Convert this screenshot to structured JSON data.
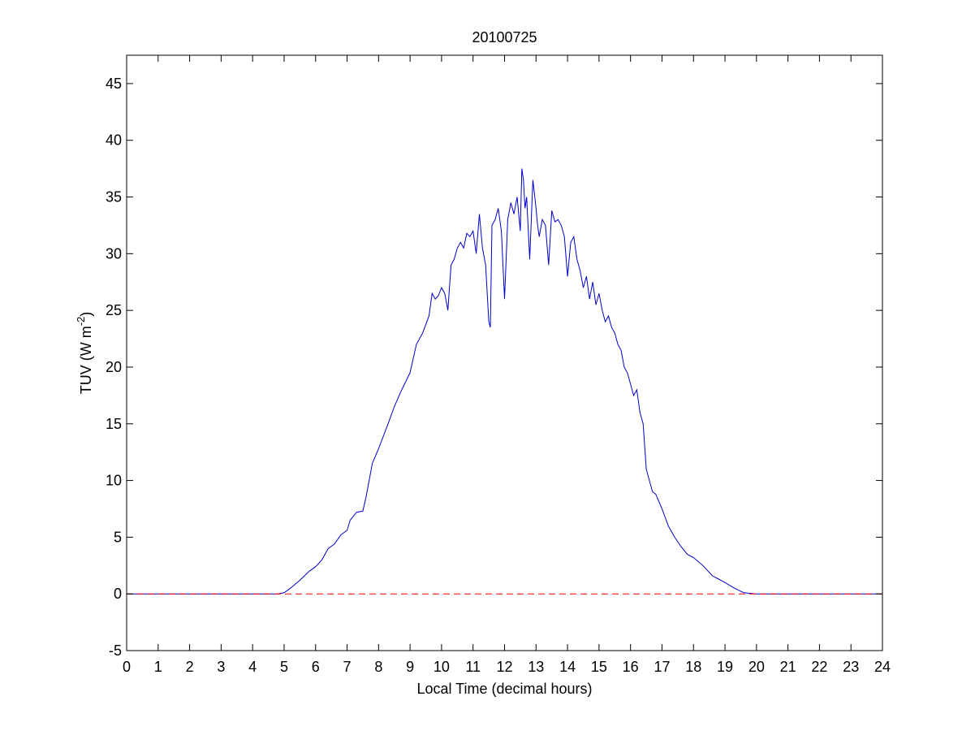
{
  "chart_data": {
    "type": "line",
    "title": "20100725",
    "xlabel": "Local Time (decimal hours)",
    "ylabel": {
      "prefix": "TUV (W m",
      "superscript": "-2",
      "suffix": ")"
    },
    "xlim": [
      0,
      24
    ],
    "ylim": [
      -5,
      47.5
    ],
    "xticks": [
      0,
      1,
      2,
      3,
      4,
      5,
      6,
      7,
      8,
      9,
      10,
      11,
      12,
      13,
      14,
      15,
      16,
      17,
      18,
      19,
      20,
      21,
      22,
      23,
      24
    ],
    "yticks": [
      -5,
      0,
      5,
      10,
      15,
      20,
      25,
      30,
      35,
      40,
      45
    ],
    "grid": false,
    "legend": "none",
    "series": [
      {
        "color": "#0000cc",
        "line_style": "solid",
        "x": [
          0,
          4.8,
          5.0,
          5.2,
          5.5,
          5.8,
          6.0,
          6.2,
          6.4,
          6.5,
          6.6,
          6.8,
          7.0,
          7.1,
          7.3,
          7.5,
          7.6,
          7.8,
          8.0,
          8.3,
          8.5,
          8.7,
          9.0,
          9.2,
          9.4,
          9.6,
          9.7,
          9.8,
          9.9,
          10.0,
          10.1,
          10.2,
          10.3,
          10.4,
          10.5,
          10.6,
          10.7,
          10.8,
          10.9,
          11.0,
          11.1,
          11.2,
          11.3,
          11.4,
          11.5,
          11.55,
          11.6,
          11.7,
          11.8,
          11.9,
          12.0,
          12.1,
          12.2,
          12.3,
          12.4,
          12.5,
          12.55,
          12.6,
          12.65,
          12.7,
          12.8,
          12.9,
          13.0,
          13.05,
          13.1,
          13.2,
          13.3,
          13.4,
          13.5,
          13.6,
          13.7,
          13.8,
          13.9,
          14.0,
          14.1,
          14.2,
          14.3,
          14.4,
          14.5,
          14.6,
          14.7,
          14.8,
          14.9,
          15.0,
          15.1,
          15.2,
          15.3,
          15.4,
          15.5,
          15.6,
          15.7,
          15.8,
          15.9,
          16.0,
          16.1,
          16.2,
          16.3,
          16.4,
          16.5,
          16.6,
          16.7,
          16.8,
          17.0,
          17.2,
          17.4,
          17.6,
          17.8,
          18.0,
          18.3,
          18.6,
          18.8,
          19.0,
          19.3,
          19.6,
          19.8,
          20.0,
          24
        ],
        "y": [
          0,
          0,
          0.1,
          0.5,
          1.2,
          2.0,
          2.4,
          3.0,
          4.0,
          4.2,
          4.4,
          5.2,
          5.6,
          6.5,
          7.2,
          7.3,
          8.5,
          11.5,
          12.8,
          15.0,
          16.5,
          17.8,
          19.5,
          22.0,
          23.0,
          24.5,
          26.5,
          26.0,
          26.3,
          27.0,
          26.5,
          25.0,
          29.0,
          29.5,
          30.5,
          31.0,
          30.5,
          31.8,
          31.5,
          32.0,
          30.0,
          33.5,
          30.5,
          29.0,
          24.0,
          23.5,
          32.5,
          33.0,
          34.0,
          32.0,
          26.0,
          33.0,
          34.5,
          33.5,
          35.0,
          32.0,
          37.5,
          36.5,
          34.0,
          35.0,
          29.5,
          36.5,
          34.0,
          32.5,
          31.5,
          33.0,
          32.5,
          29.0,
          33.8,
          32.8,
          33.0,
          32.5,
          31.5,
          28.0,
          31.0,
          31.5,
          29.5,
          28.5,
          27.0,
          28.0,
          26.0,
          27.5,
          25.5,
          26.5,
          25.0,
          24.0,
          24.5,
          23.5,
          23.0,
          22.0,
          21.5,
          20.0,
          19.5,
          18.5,
          17.5,
          18.0,
          16.0,
          15.0,
          11.0,
          10.0,
          9.0,
          8.8,
          7.5,
          6.0,
          5.0,
          4.2,
          3.5,
          3.2,
          2.5,
          1.6,
          1.3,
          1.0,
          0.5,
          0.1,
          0.05,
          0,
          0
        ]
      },
      {
        "color": "#ff0000",
        "line_style": "dashed",
        "x": [
          0,
          24
        ],
        "y": [
          0,
          0
        ]
      }
    ]
  }
}
